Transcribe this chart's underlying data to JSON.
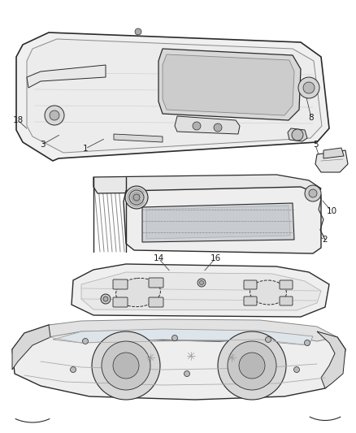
{
  "background_color": "#ffffff",
  "line_color": "#2a2a2a",
  "label_color": "#1a1a1a",
  "label_fontsize": 7.5,
  "fig_width": 4.38,
  "fig_height": 5.33,
  "dpi": 100
}
